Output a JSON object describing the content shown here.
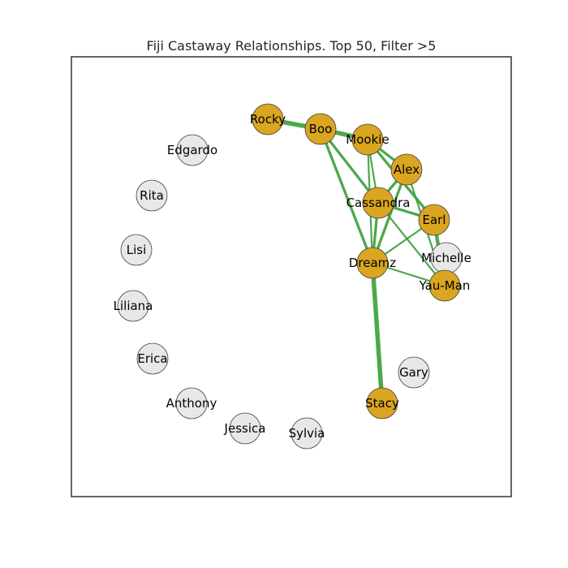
{
  "title": "Fiji Castaway Relationships. Top 50, Filter >5",
  "colors": {
    "active_node": "#daa520",
    "inactive_node": "#e8e8e8",
    "node_border": "#404040",
    "edge": "#3a9e3a",
    "frame": "#333333"
  },
  "nodes": [
    {
      "id": "Rocky",
      "label": "Rocky",
      "active": true
    },
    {
      "id": "Boo",
      "label": "Boo",
      "active": true
    },
    {
      "id": "Mookie",
      "label": "Mookie",
      "active": true
    },
    {
      "id": "Alex",
      "label": "Alex",
      "active": true
    },
    {
      "id": "Cassandra",
      "label": "Cassandra",
      "active": true
    },
    {
      "id": "Earl",
      "label": "Earl",
      "active": true
    },
    {
      "id": "Michelle",
      "label": "Michelle",
      "active": false
    },
    {
      "id": "Yau-Man",
      "label": "Yau-Man",
      "active": true
    },
    {
      "id": "Dreamz",
      "label": "Dreamz",
      "active": true
    },
    {
      "id": "Gary",
      "label": "Gary",
      "active": false
    },
    {
      "id": "Stacy",
      "label": "Stacy",
      "active": true
    },
    {
      "id": "Sylvia",
      "label": "Sylvia",
      "active": false
    },
    {
      "id": "Jessica",
      "label": "Jessica",
      "active": false
    },
    {
      "id": "Anthony",
      "label": "Anthony",
      "active": false
    },
    {
      "id": "Erica",
      "label": "Erica",
      "active": false
    },
    {
      "id": "Liliana",
      "label": "Liliana",
      "active": false
    },
    {
      "id": "Lisi",
      "label": "Lisi",
      "active": false
    },
    {
      "id": "Rita",
      "label": "Rita",
      "active": false
    },
    {
      "id": "Edgardo",
      "label": "Edgardo",
      "active": false
    }
  ],
  "edges": [
    {
      "source": "Rocky",
      "target": "Boo",
      "weight": 5
    },
    {
      "source": "Boo",
      "target": "Mookie",
      "weight": 5
    },
    {
      "source": "Dreamz",
      "target": "Stacy",
      "weight": 5
    },
    {
      "source": "Boo",
      "target": "Cassandra",
      "weight": 3
    },
    {
      "source": "Boo",
      "target": "Dreamz",
      "weight": 3
    },
    {
      "source": "Mookie",
      "target": "Alex",
      "weight": 3
    },
    {
      "source": "Mookie",
      "target": "Cassandra",
      "weight": 2
    },
    {
      "source": "Mookie",
      "target": "Dreamz",
      "weight": 2
    },
    {
      "source": "Mookie",
      "target": "Earl",
      "weight": 3
    },
    {
      "source": "Alex",
      "target": "Cassandra",
      "weight": 3
    },
    {
      "source": "Alex",
      "target": "Dreamz",
      "weight": 3
    },
    {
      "source": "Alex",
      "target": "Yau-Man",
      "weight": 2
    },
    {
      "source": "Cassandra",
      "target": "Earl",
      "weight": 3
    },
    {
      "source": "Cassandra",
      "target": "Dreamz",
      "weight": 3
    },
    {
      "source": "Cassandra",
      "target": "Yau-Man",
      "weight": 2
    },
    {
      "source": "Earl",
      "target": "Yau-Man",
      "weight": 4
    },
    {
      "source": "Earl",
      "target": "Dreamz",
      "weight": 2
    },
    {
      "source": "Dreamz",
      "target": "Yau-Man",
      "weight": 2
    }
  ]
}
